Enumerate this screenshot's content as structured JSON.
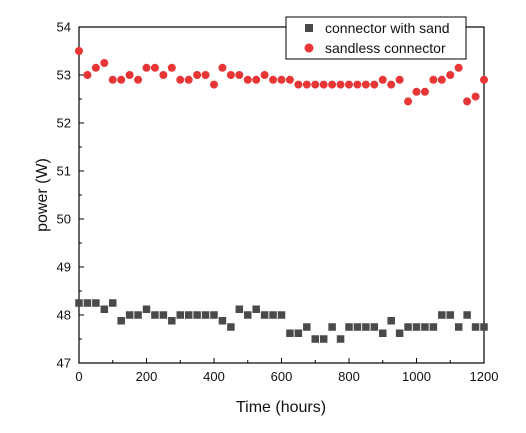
{
  "chart_data": {
    "type": "scatter",
    "title": "",
    "xlabel": "Time (hours)",
    "ylabel": "power (W)",
    "xlim": [
      0,
      1200
    ],
    "ylim": [
      47,
      54
    ],
    "xticks": [
      0,
      200,
      400,
      600,
      800,
      1000,
      1200
    ],
    "yticks": [
      47,
      48,
      49,
      50,
      51,
      52,
      53,
      54
    ],
    "xtick_labels": [
      "0",
      "200",
      "400",
      "600",
      "800",
      "1000",
      "1200"
    ],
    "ytick_labels": [
      "47",
      "48",
      "49",
      "50",
      "51",
      "52",
      "53",
      "54"
    ],
    "grid": false,
    "legend_position": "top-right",
    "series": [
      {
        "name": "connector with sand",
        "marker": "square",
        "color": "#4a4a4a",
        "x": [
          0,
          25,
          50,
          75,
          100,
          125,
          150,
          175,
          200,
          225,
          250,
          275,
          300,
          325,
          350,
          375,
          400,
          425,
          450,
          475,
          500,
          525,
          550,
          575,
          600,
          625,
          650,
          675,
          700,
          725,
          750,
          775,
          800,
          825,
          850,
          875,
          900,
          925,
          950,
          975,
          1000,
          1025,
          1050,
          1075,
          1100,
          1125,
          1150,
          1175,
          1200
        ],
        "y": [
          48.25,
          48.25,
          48.25,
          48.12,
          48.25,
          47.88,
          48.0,
          48.0,
          48.12,
          48.0,
          48.0,
          47.88,
          48.0,
          48.0,
          48.0,
          48.0,
          48.0,
          47.88,
          47.75,
          48.12,
          48.0,
          48.12,
          48.0,
          48.0,
          48.0,
          47.62,
          47.62,
          47.75,
          47.5,
          47.5,
          47.75,
          47.5,
          47.75,
          47.75,
          47.75,
          47.75,
          47.62,
          47.88,
          47.62,
          47.75,
          47.75,
          47.75,
          47.75,
          48.0,
          48.0,
          47.75,
          48.0,
          47.75,
          47.75
        ]
      },
      {
        "name": "sandless connector",
        "marker": "circle",
        "color": "#e83535",
        "x": [
          0,
          25,
          50,
          75,
          100,
          125,
          150,
          175,
          200,
          225,
          250,
          275,
          300,
          325,
          350,
          375,
          400,
          425,
          450,
          475,
          500,
          525,
          550,
          575,
          600,
          625,
          650,
          675,
          700,
          725,
          750,
          775,
          800,
          825,
          850,
          875,
          900,
          925,
          950,
          975,
          1000,
          1025,
          1050,
          1075,
          1100,
          1125,
          1150,
          1175,
          1200
        ],
        "y": [
          53.5,
          53.0,
          53.15,
          53.25,
          52.9,
          52.9,
          53.0,
          52.9,
          53.15,
          53.15,
          53.0,
          53.15,
          52.9,
          52.9,
          53.0,
          53.0,
          52.8,
          53.15,
          53.0,
          53.0,
          52.9,
          52.9,
          53.0,
          52.9,
          52.9,
          52.9,
          52.8,
          52.8,
          52.8,
          52.8,
          52.8,
          52.8,
          52.8,
          52.8,
          52.8,
          52.8,
          52.9,
          52.8,
          52.9,
          52.45,
          52.65,
          52.65,
          52.9,
          52.9,
          53.0,
          53.15,
          52.45,
          52.55,
          52.9
        ]
      }
    ]
  }
}
